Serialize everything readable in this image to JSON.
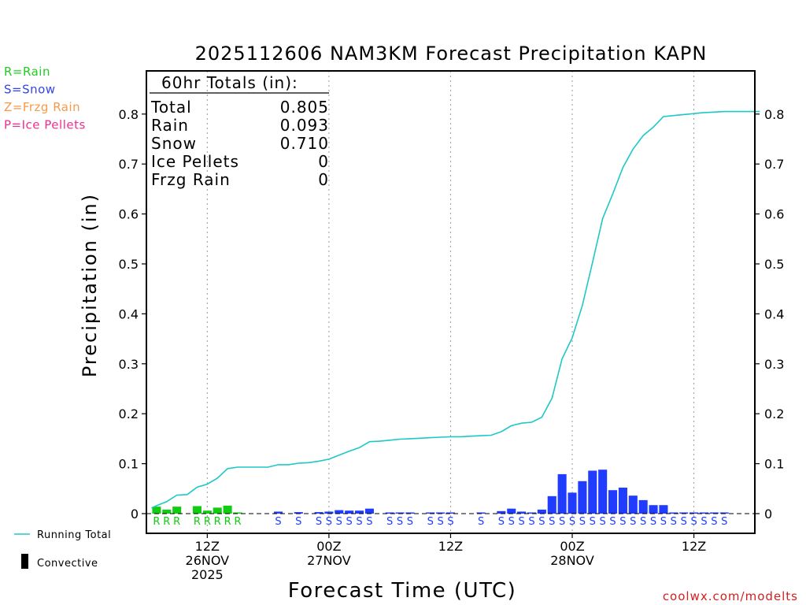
{
  "chart_data": {
    "type": "bar",
    "title": "2025112606 NAM3KM Forecast Precipitation KAPN",
    "xlabel": "Forecast Time (UTC)",
    "ylabel": "Precipitation (in)",
    "ylim": [
      0,
      0.88
    ],
    "yticks": [
      0,
      0.1,
      0.2,
      0.3,
      0.4,
      0.5,
      0.6,
      0.7,
      0.8
    ],
    "ytick_labels": [
      "0",
      "0.1",
      "0.2",
      "0.3",
      "0.4",
      "0.5",
      "0.6",
      "0.7",
      "0.8"
    ],
    "x_unit": "forecast hour",
    "xlim": [
      0.5,
      60.5
    ],
    "xticks": [
      {
        "hour": 6,
        "lines": [
          "12Z",
          "26NOV",
          "2025"
        ]
      },
      {
        "hour": 18,
        "lines": [
          "00Z",
          "27NOV"
        ]
      },
      {
        "hour": 30,
        "lines": [
          "12Z"
        ]
      },
      {
        "hour": 42,
        "lines": [
          "00Z",
          "28NOV"
        ]
      },
      {
        "hour": 54,
        "lines": [
          "12Z"
        ]
      }
    ],
    "hourly_precip": [
      {
        "hour": 1,
        "value": 0.014,
        "type": "R"
      },
      {
        "hour": 2,
        "value": 0.008,
        "type": "R"
      },
      {
        "hour": 3,
        "value": 0.014,
        "type": "R"
      },
      {
        "hour": 5,
        "value": 0.015,
        "type": "R"
      },
      {
        "hour": 6,
        "value": 0.006,
        "type": "R"
      },
      {
        "hour": 7,
        "value": 0.012,
        "type": "R"
      },
      {
        "hour": 8,
        "value": 0.016,
        "type": "R"
      },
      {
        "hour": 9,
        "value": 0.002,
        "type": "R"
      },
      {
        "hour": 13,
        "value": 0.004,
        "type": "S"
      },
      {
        "hour": 15,
        "value": 0.003,
        "type": "S"
      },
      {
        "hour": 17,
        "value": 0.003,
        "type": "S"
      },
      {
        "hour": 18,
        "value": 0.004,
        "type": "S"
      },
      {
        "hour": 19,
        "value": 0.007,
        "type": "S"
      },
      {
        "hour": 20,
        "value": 0.006,
        "type": "S"
      },
      {
        "hour": 21,
        "value": 0.006,
        "type": "S"
      },
      {
        "hour": 22,
        "value": 0.01,
        "type": "S"
      },
      {
        "hour": 24,
        "value": 0.002,
        "type": "S"
      },
      {
        "hour": 25,
        "value": 0.002,
        "type": "S"
      },
      {
        "hour": 26,
        "value": 0.001,
        "type": "S"
      },
      {
        "hour": 28,
        "value": 0.001,
        "type": "S"
      },
      {
        "hour": 29,
        "value": 0.001,
        "type": "S"
      },
      {
        "hour": 30,
        "value": 0.001,
        "type": "S"
      },
      {
        "hour": 33,
        "value": 0.002,
        "type": "S"
      },
      {
        "hour": 35,
        "value": 0.005,
        "type": "S"
      },
      {
        "hour": 36,
        "value": 0.01,
        "type": "S"
      },
      {
        "hour": 37,
        "value": 0.004,
        "type": "S"
      },
      {
        "hour": 38,
        "value": 0.002,
        "type": "S"
      },
      {
        "hour": 39,
        "value": 0.008,
        "type": "S"
      },
      {
        "hour": 40,
        "value": 0.035,
        "type": "S"
      },
      {
        "hour": 41,
        "value": 0.079,
        "type": "S"
      },
      {
        "hour": 42,
        "value": 0.042,
        "type": "S"
      },
      {
        "hour": 43,
        "value": 0.065,
        "type": "S"
      },
      {
        "hour": 44,
        "value": 0.086,
        "type": "S"
      },
      {
        "hour": 45,
        "value": 0.088,
        "type": "S"
      },
      {
        "hour": 46,
        "value": 0.047,
        "type": "S"
      },
      {
        "hour": 47,
        "value": 0.052,
        "type": "S"
      },
      {
        "hour": 48,
        "value": 0.036,
        "type": "S"
      },
      {
        "hour": 49,
        "value": 0.027,
        "type": "S"
      },
      {
        "hour": 50,
        "value": 0.017,
        "type": "S"
      },
      {
        "hour": 51,
        "value": 0.017,
        "type": "S"
      },
      {
        "hour": 52,
        "value": 0.001,
        "type": "S"
      },
      {
        "hour": 53,
        "value": 0.001,
        "type": "S"
      },
      {
        "hour": 54,
        "value": 0.001,
        "type": "S"
      },
      {
        "hour": 55,
        "value": 0.001,
        "type": "S"
      },
      {
        "hour": 56,
        "value": 0.001,
        "type": "S"
      },
      {
        "hour": 57,
        "value": 0.001,
        "type": "S"
      }
    ],
    "type_letters": [
      {
        "hour": 1,
        "letter": "R"
      },
      {
        "hour": 2,
        "letter": "R"
      },
      {
        "hour": 3,
        "letter": "R"
      },
      {
        "hour": 5,
        "letter": "R"
      },
      {
        "hour": 6,
        "letter": "R"
      },
      {
        "hour": 7,
        "letter": "R"
      },
      {
        "hour": 8,
        "letter": "R"
      },
      {
        "hour": 9,
        "letter": "R"
      },
      {
        "hour": 13,
        "letter": "S"
      },
      {
        "hour": 15,
        "letter": "S"
      },
      {
        "hour": 17,
        "letter": "S"
      },
      {
        "hour": 18,
        "letter": "S"
      },
      {
        "hour": 19,
        "letter": "S"
      },
      {
        "hour": 20,
        "letter": "S"
      },
      {
        "hour": 21,
        "letter": "S"
      },
      {
        "hour": 22,
        "letter": "S"
      },
      {
        "hour": 24,
        "letter": "S"
      },
      {
        "hour": 25,
        "letter": "S"
      },
      {
        "hour": 26,
        "letter": "S"
      },
      {
        "hour": 28,
        "letter": "S"
      },
      {
        "hour": 29,
        "letter": "S"
      },
      {
        "hour": 30,
        "letter": "S"
      },
      {
        "hour": 33,
        "letter": "S"
      },
      {
        "hour": 35,
        "letter": "S"
      },
      {
        "hour": 36,
        "letter": "S"
      },
      {
        "hour": 37,
        "letter": "S"
      },
      {
        "hour": 38,
        "letter": "S"
      },
      {
        "hour": 39,
        "letter": "S"
      },
      {
        "hour": 40,
        "letter": "S"
      },
      {
        "hour": 41,
        "letter": "S"
      },
      {
        "hour": 42,
        "letter": "S"
      },
      {
        "hour": 43,
        "letter": "S"
      },
      {
        "hour": 44,
        "letter": "S"
      },
      {
        "hour": 45,
        "letter": "S"
      },
      {
        "hour": 46,
        "letter": "S"
      },
      {
        "hour": 47,
        "letter": "S"
      },
      {
        "hour": 48,
        "letter": "S"
      },
      {
        "hour": 49,
        "letter": "S"
      },
      {
        "hour": 50,
        "letter": "S"
      },
      {
        "hour": 51,
        "letter": "S"
      },
      {
        "hour": 52,
        "letter": "S"
      },
      {
        "hour": 53,
        "letter": "S"
      },
      {
        "hour": 54,
        "letter": "S"
      },
      {
        "hour": 55,
        "letter": "S"
      },
      {
        "hour": 56,
        "letter": "S"
      },
      {
        "hour": 57,
        "letter": "S"
      }
    ],
    "running_total": [
      {
        "hour": 0.5,
        "value": 0.011
      },
      {
        "hour": 1,
        "value": 0.016
      },
      {
        "hour": 2,
        "value": 0.024
      },
      {
        "hour": 3,
        "value": 0.037
      },
      {
        "hour": 4,
        "value": 0.038
      },
      {
        "hour": 5,
        "value": 0.053
      },
      {
        "hour": 6,
        "value": 0.059
      },
      {
        "hour": 7,
        "value": 0.071
      },
      {
        "hour": 8,
        "value": 0.09
      },
      {
        "hour": 9,
        "value": 0.093
      },
      {
        "hour": 10,
        "value": 0.093
      },
      {
        "hour": 11,
        "value": 0.093
      },
      {
        "hour": 12,
        "value": 0.093
      },
      {
        "hour": 13,
        "value": 0.098
      },
      {
        "hour": 14,
        "value": 0.098
      },
      {
        "hour": 15,
        "value": 0.101
      },
      {
        "hour": 16,
        "value": 0.102
      },
      {
        "hour": 17,
        "value": 0.105
      },
      {
        "hour": 18,
        "value": 0.109
      },
      {
        "hour": 19,
        "value": 0.117
      },
      {
        "hour": 20,
        "value": 0.125
      },
      {
        "hour": 21,
        "value": 0.132
      },
      {
        "hour": 22,
        "value": 0.144
      },
      {
        "hour": 23,
        "value": 0.145
      },
      {
        "hour": 24,
        "value": 0.147
      },
      {
        "hour": 25,
        "value": 0.149
      },
      {
        "hour": 26,
        "value": 0.15
      },
      {
        "hour": 27,
        "value": 0.151
      },
      {
        "hour": 28,
        "value": 0.152
      },
      {
        "hour": 29,
        "value": 0.153
      },
      {
        "hour": 30,
        "value": 0.154
      },
      {
        "hour": 31,
        "value": 0.154
      },
      {
        "hour": 32,
        "value": 0.155
      },
      {
        "hour": 33,
        "value": 0.156
      },
      {
        "hour": 34,
        "value": 0.157
      },
      {
        "hour": 35,
        "value": 0.164
      },
      {
        "hour": 36,
        "value": 0.176
      },
      {
        "hour": 37,
        "value": 0.181
      },
      {
        "hour": 38,
        "value": 0.183
      },
      {
        "hour": 39,
        "value": 0.193
      },
      {
        "hour": 40,
        "value": 0.231
      },
      {
        "hour": 41,
        "value": 0.31
      },
      {
        "hour": 42,
        "value": 0.352
      },
      {
        "hour": 43,
        "value": 0.417
      },
      {
        "hour": 44,
        "value": 0.503
      },
      {
        "hour": 45,
        "value": 0.591
      },
      {
        "hour": 46,
        "value": 0.64
      },
      {
        "hour": 47,
        "value": 0.693
      },
      {
        "hour": 48,
        "value": 0.73
      },
      {
        "hour": 49,
        "value": 0.757
      },
      {
        "hour": 50,
        "value": 0.774
      },
      {
        "hour": 51,
        "value": 0.795
      },
      {
        "hour": 52,
        "value": 0.797
      },
      {
        "hour": 53,
        "value": 0.799
      },
      {
        "hour": 54,
        "value": 0.801
      },
      {
        "hour": 55,
        "value": 0.803
      },
      {
        "hour": 56,
        "value": 0.804
      },
      {
        "hour": 57,
        "value": 0.805
      },
      {
        "hour": 58,
        "value": 0.805
      },
      {
        "hour": 59,
        "value": 0.805
      },
      {
        "hour": 60,
        "value": 0.805
      },
      {
        "hour": 60.5,
        "value": 0.805
      }
    ],
    "totals_box": {
      "heading": "60hr Totals (in):",
      "rows": [
        {
          "label": "Total",
          "value": "0.805"
        },
        {
          "label": "Rain",
          "value": "0.093"
        },
        {
          "label": "Snow",
          "value": "0.710"
        },
        {
          "label": "Ice Pellets",
          "value": "0"
        },
        {
          "label": "Frzg Rain",
          "value": "0"
        }
      ]
    },
    "type_legend": [
      {
        "text": "R=Rain",
        "color": "#22cc22"
      },
      {
        "text": "S=Snow",
        "color": "#3344ee"
      },
      {
        "text": "Z=Frzg Rain",
        "color": "#f59a4a"
      },
      {
        "text": "P=Ice Pellets",
        "color": "#ee2f8f"
      }
    ],
    "line_legend": [
      {
        "text": "Running Total",
        "kind": "line",
        "color": "#1ec8c8"
      },
      {
        "text": "Convective",
        "kind": "bar",
        "color": "#000000"
      }
    ],
    "colors": {
      "rain": "#11cc11",
      "snow": "#1f3cff",
      "running_total": "#1ec8c8",
      "grid": "#9a9a9a",
      "source": "#d11f1f"
    },
    "source": "coolwx.com/modelts"
  }
}
